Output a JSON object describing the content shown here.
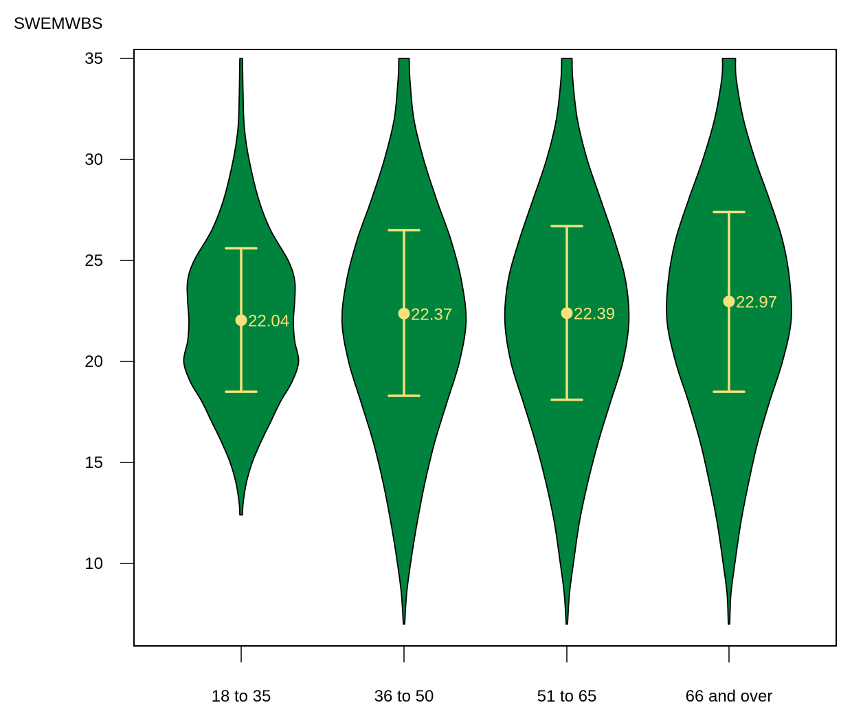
{
  "chart_data": {
    "type": "violin",
    "title": "",
    "xlabel": "",
    "ylabel": "SWEMWBS",
    "ylim": [
      7,
      35
    ],
    "yticks": [
      10,
      15,
      20,
      25,
      30,
      35
    ],
    "grid": false,
    "legend": null,
    "categories": [
      "18 to 35",
      "36 to 50",
      "51 to 65",
      "66 and over"
    ],
    "series": [
      {
        "name": "18 to 35",
        "mean": 22.04,
        "mean_label": "22.04",
        "ci_upper": 25.6,
        "ci_lower": 18.5,
        "min": 12.4,
        "max": 35,
        "density_profile": [
          [
            35,
            0.02
          ],
          [
            33,
            0.03
          ],
          [
            31.5,
            0.05
          ],
          [
            30,
            0.12
          ],
          [
            28,
            0.27
          ],
          [
            26.5,
            0.45
          ],
          [
            25,
            0.72
          ],
          [
            24,
            0.82
          ],
          [
            23,
            0.82
          ],
          [
            22,
            0.8
          ],
          [
            21,
            0.82
          ],
          [
            20,
            0.88
          ],
          [
            19,
            0.78
          ],
          [
            18,
            0.6
          ],
          [
            17,
            0.45
          ],
          [
            16,
            0.3
          ],
          [
            15,
            0.17
          ],
          [
            14,
            0.08
          ],
          [
            13,
            0.03
          ],
          [
            12.4,
            0.02
          ]
        ]
      },
      {
        "name": "36 to 50",
        "mean": 22.37,
        "mean_label": "22.37",
        "ci_upper": 26.5,
        "ci_lower": 18.3,
        "min": 7,
        "max": 35,
        "density_profile": [
          [
            35,
            0.08
          ],
          [
            34,
            0.09
          ],
          [
            32,
            0.15
          ],
          [
            30,
            0.3
          ],
          [
            28,
            0.5
          ],
          [
            26,
            0.72
          ],
          [
            24,
            0.88
          ],
          [
            22,
            0.95
          ],
          [
            20,
            0.85
          ],
          [
            18,
            0.66
          ],
          [
            16,
            0.47
          ],
          [
            14,
            0.32
          ],
          [
            12,
            0.2
          ],
          [
            10,
            0.1
          ],
          [
            8.5,
            0.04
          ],
          [
            7,
            0.01
          ]
        ]
      },
      {
        "name": "51 to 65",
        "mean": 22.39,
        "mean_label": "22.39",
        "ci_upper": 26.7,
        "ci_lower": 18.1,
        "min": 7,
        "max": 35,
        "density_profile": [
          [
            35,
            0.08
          ],
          [
            34,
            0.09
          ],
          [
            32,
            0.16
          ],
          [
            30,
            0.31
          ],
          [
            28,
            0.52
          ],
          [
            26,
            0.73
          ],
          [
            24,
            0.9
          ],
          [
            22,
            0.95
          ],
          [
            20,
            0.86
          ],
          [
            18,
            0.67
          ],
          [
            16,
            0.48
          ],
          [
            14,
            0.32
          ],
          [
            12,
            0.19
          ],
          [
            10,
            0.1
          ],
          [
            8.5,
            0.04
          ],
          [
            7,
            0.01
          ]
        ]
      },
      {
        "name": "66 and over",
        "mean": 22.97,
        "mean_label": "22.97",
        "ci_upper": 27.4,
        "ci_lower": 18.5,
        "min": 7,
        "max": 35,
        "density_profile": [
          [
            35,
            0.1
          ],
          [
            34,
            0.11
          ],
          [
            32,
            0.22
          ],
          [
            30,
            0.4
          ],
          [
            28,
            0.62
          ],
          [
            26,
            0.82
          ],
          [
            24,
            0.93
          ],
          [
            22,
            0.95
          ],
          [
            20,
            0.82
          ],
          [
            18,
            0.62
          ],
          [
            16,
            0.44
          ],
          [
            14,
            0.3
          ],
          [
            12,
            0.18
          ],
          [
            10,
            0.09
          ],
          [
            8.5,
            0.03
          ],
          [
            7,
            0.01
          ]
        ]
      }
    ]
  },
  "colors": {
    "violin_fill": "#00843D",
    "violin_stroke": "#000000",
    "error_bar": "#F5E27A",
    "axis": "#000000",
    "background": "#FFFFFF"
  }
}
